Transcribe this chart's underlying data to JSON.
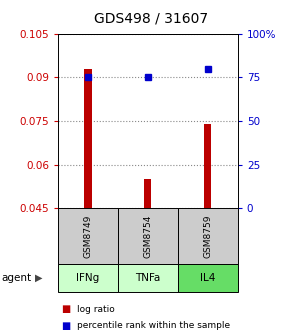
{
  "title": "GDS498 / 31607",
  "samples": [
    "GSM8749",
    "GSM8754",
    "GSM8759"
  ],
  "agents": [
    "IFNg",
    "TNFa",
    "IL4"
  ],
  "log_ratio": [
    0.093,
    0.055,
    0.074
  ],
  "percentile_rank_pct": [
    75,
    75,
    80
  ],
  "ylim_left": [
    0.045,
    0.105
  ],
  "ylim_right": [
    0,
    100
  ],
  "yticks_left": [
    0.045,
    0.06,
    0.075,
    0.09,
    0.105
  ],
  "yticks_right": [
    0,
    25,
    50,
    75,
    100
  ],
  "ytick_labels_left": [
    "0.045",
    "0.06",
    "0.075",
    "0.09",
    "0.105"
  ],
  "ytick_labels_right": [
    "0",
    "25",
    "50",
    "75",
    "100%"
  ],
  "bar_color": "#bb0000",
  "dot_color": "#0000cc",
  "grid_color": "#888888",
  "sample_bg": "#cccccc",
  "agent_bg_colors": [
    "#ccffcc",
    "#ccffcc",
    "#66dd66"
  ],
  "title_fontsize": 10,
  "tick_fontsize": 7.5,
  "bar_width": 0.12
}
